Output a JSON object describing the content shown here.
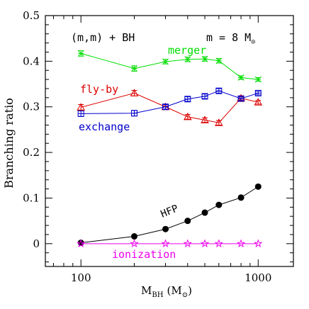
{
  "chart_data": {
    "type": "line",
    "ylabel": "Branching ratio",
    "xlabel_main": "M",
    "xlabel_sub": "BH",
    "xlabel_units": "(M",
    "xlabel_units_sub": "⊙",
    "xlabel_units_close": ")",
    "xscale": "log",
    "xlim": [
      63,
      1580
    ],
    "ylim": [
      -0.05,
      0.5
    ],
    "x_ticks": [
      100,
      1000
    ],
    "x_tick_labels": [
      "100",
      "1000"
    ],
    "y_ticks": [
      0,
      0.1,
      0.2,
      0.3,
      0.4,
      0.5
    ],
    "y_tick_labels": [
      "0",
      "0.1",
      "0.2",
      "0.3",
      "0.4",
      "0.5"
    ],
    "grid": false,
    "annotations": {
      "left": "(m,m) + BH",
      "right_prefix": "m = 8 M",
      "right_sub": "⊙"
    },
    "series": [
      {
        "name": "merger",
        "color": "#00dd00",
        "marker": "star-x",
        "x": [
          100,
          200,
          300,
          400,
          500,
          600,
          800,
          1000
        ],
        "y": [
          0.417,
          0.384,
          0.399,
          0.404,
          0.405,
          0.401,
          0.364,
          0.36
        ],
        "err": [
          0.006,
          0.006,
          0.005,
          0.005,
          0.005,
          0.005,
          0.004,
          0.004
        ]
      },
      {
        "name": "fly-by",
        "color": "#dd0000",
        "marker": "triangle",
        "x": [
          100,
          200,
          300,
          400,
          500,
          600,
          800,
          1000
        ],
        "y": [
          0.299,
          0.33,
          0.3,
          0.278,
          0.271,
          0.265,
          0.319,
          0.31
        ],
        "err": [
          0.006,
          0.006,
          0.005,
          0.005,
          0.005,
          0.005,
          0.004,
          0.004
        ]
      },
      {
        "name": "exchange",
        "color": "#0000cc",
        "marker": "square-plus",
        "x": [
          100,
          200,
          300,
          400,
          500,
          600,
          800,
          1000
        ],
        "y": [
          0.285,
          0.286,
          0.3,
          0.317,
          0.323,
          0.335,
          0.318,
          0.33
        ],
        "err": [
          0.006,
          0.006,
          0.005,
          0.005,
          0.005,
          0.005,
          0.004,
          0.004
        ]
      },
      {
        "name": "HFP",
        "color": "#000000",
        "marker": "filled-circle",
        "x": [
          100,
          200,
          300,
          400,
          500,
          600,
          800,
          1000
        ],
        "y": [
          0.002,
          0.016,
          0.032,
          0.05,
          0.068,
          0.085,
          0.101,
          0.125
        ],
        "err": [
          0,
          0,
          0,
          0,
          0,
          0,
          0,
          0
        ]
      },
      {
        "name": "ionization",
        "color": "#ee00ee",
        "marker": "star",
        "x": [
          100,
          200,
          300,
          400,
          500,
          600,
          800,
          1000
        ],
        "y": [
          0.0,
          0.0,
          0.0,
          0.0,
          0.0,
          0.0,
          0.0,
          0.0
        ],
        "err": [
          0,
          0,
          0,
          0,
          0,
          0,
          0,
          0
        ]
      }
    ]
  }
}
